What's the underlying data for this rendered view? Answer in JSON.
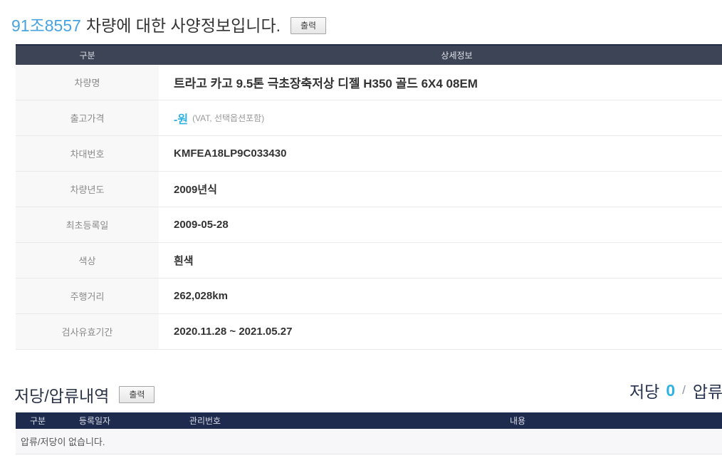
{
  "header": {
    "vehicle_no": "91조8557",
    "title_suffix": "차량에 대한 사양정보입니다.",
    "print_button": "출력"
  },
  "spec_table": {
    "col_label": "구분",
    "col_value": "상세정보",
    "rows": [
      {
        "label": "차량명",
        "value": "트라고 카고 9.5톤 극초장축저상 디젤 H350 골드 6X4 08EM"
      },
      {
        "label": "출고가격",
        "value": "-원",
        "note": "(VAT, 선택옵션포함)"
      },
      {
        "label": "차대번호",
        "value": "KMFEA18LP9C033430"
      },
      {
        "label": "차량년도",
        "value": "2009년식"
      },
      {
        "label": "최초등록일",
        "value": "2009-05-28"
      },
      {
        "label": "색상",
        "value": "흰색"
      },
      {
        "label": "주행거리",
        "value": "262,028km"
      },
      {
        "label": "검사유효기간",
        "value": "2020.11.28 ~ 2021.05.27"
      }
    ]
  },
  "lien_section": {
    "title": "저당/압류내역",
    "print_button": "출력",
    "summary": {
      "mortgage_label": "저당",
      "mortgage_count": "0",
      "separator": "/",
      "seizure_label": "압류"
    },
    "table": {
      "headers": [
        "구분",
        "등록일자",
        "관리번호",
        "내용"
      ],
      "empty_message": "압류/저당이 없습니다."
    }
  },
  "colors": {
    "accent_blue": "#47a3df",
    "accent_cyan": "#2fb2e4",
    "spec_header_bg": "#3d4455",
    "lien_header_bg": "#1e2b4e",
    "label_column_bg": "#f8f8f9"
  }
}
